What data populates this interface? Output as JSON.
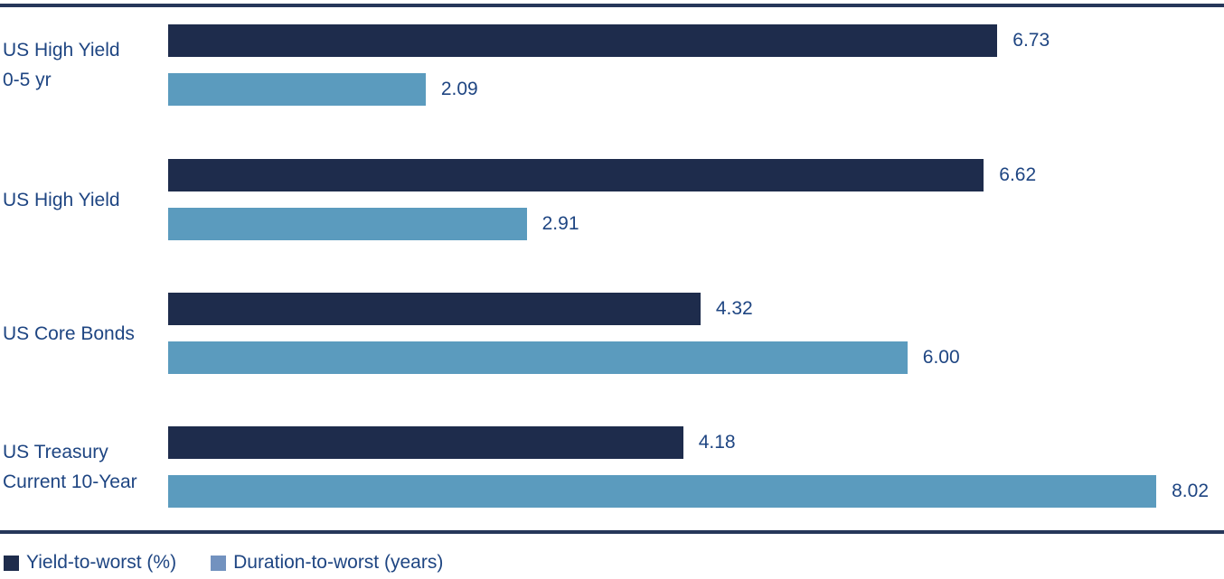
{
  "chart_data": {
    "type": "bar",
    "orientation": "horizontal",
    "categories": [
      "US High Yield 0-5 yr",
      "US High Yield",
      "US Core Bonds",
      "US Treasury Current 10-Year"
    ],
    "label_lines": [
      [
        "US High Yield",
        "0-5 yr"
      ],
      [
        "US High Yield"
      ],
      [
        "US Core Bonds"
      ],
      [
        "US Treasury",
        "Current 10-Year"
      ]
    ],
    "series": [
      {
        "name": "Yield-to-worst (%)",
        "values": [
          6.73,
          6.62,
          4.32,
          4.18
        ],
        "color": "#1e2c4c"
      },
      {
        "name": "Duration-to-worst (years)",
        "values": [
          2.09,
          2.91,
          6.0,
          8.02
        ],
        "color": "#5b9bbe"
      }
    ],
    "value_labels": [
      [
        "6.73",
        "6.62",
        "4.32",
        "4.18"
      ],
      [
        "2.09",
        "2.91",
        "6.00",
        "8.02"
      ]
    ],
    "xlim": [
      0,
      8.57
    ],
    "grid": false,
    "legend_position": "bottom-left",
    "title": "",
    "xlabel": "",
    "ylabel": ""
  },
  "legend": {
    "items": [
      {
        "label": "Yield-to-worst (%)",
        "color": "#1e2c4c"
      },
      {
        "label": "Duration-to-worst (years)",
        "color": "#7292bf"
      }
    ]
  },
  "colors": {
    "rule": "#26375a",
    "text": "#1e4582",
    "background": "#ffffff"
  }
}
